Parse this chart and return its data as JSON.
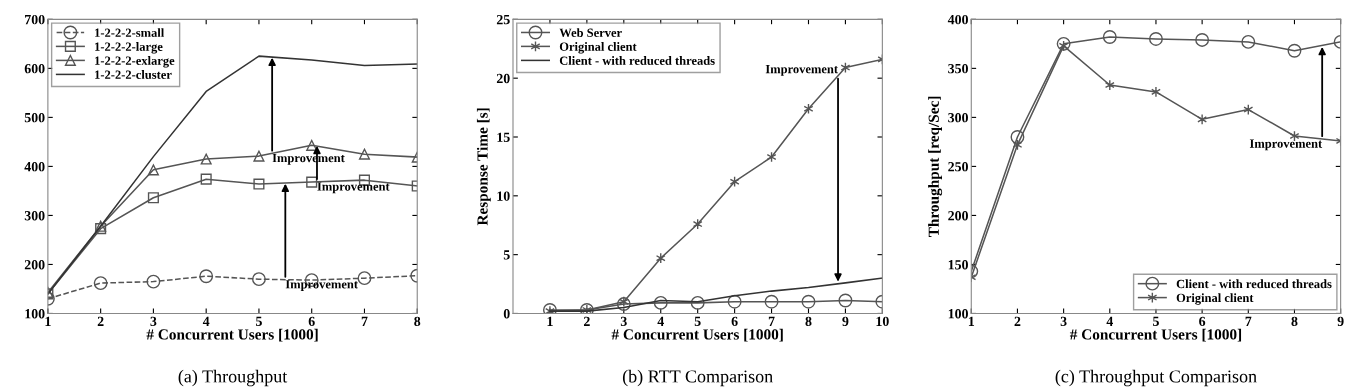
{
  "chart_data": [
    {
      "type": "line",
      "title": "(a) Throughput",
      "xlabel": "# Concurrent Users [1000]",
      "x": [
        1,
        2,
        3,
        4,
        5,
        6,
        7,
        8
      ],
      "xlim": [
        1,
        8
      ],
      "xticks": [
        1,
        2,
        3,
        4,
        5,
        6,
        7,
        8
      ],
      "ylim": [
        100,
        700
      ],
      "yticks": [
        100,
        200,
        300,
        400,
        500,
        600,
        700
      ],
      "grid": false,
      "legend": "top left",
      "series": [
        {
          "name": "1-2-2-2-small",
          "color": "#555555",
          "marker": "circle",
          "line_style": "dashed",
          "values": [
            130,
            162,
            165,
            176,
            170,
            168,
            172,
            177
          ]
        },
        {
          "name": "1-2-2-2-large",
          "color": "#555555",
          "marker": "square",
          "line_style": "solid",
          "values": [
            140,
            273,
            336,
            374,
            364,
            368,
            372,
            360
          ]
        },
        {
          "name": "1-2-2-2-exlarge",
          "color": "#555555",
          "marker": "triangle",
          "line_style": "solid",
          "values": [
            143,
            278,
            393,
            415,
            421,
            443,
            425,
            419
          ]
        },
        {
          "name": "1-2-2-2-cluster",
          "color": "#333333",
          "marker": "none",
          "line_style": "solid",
          "values": [
            140,
            278,
            420,
            553,
            625,
            617,
            606,
            609
          ]
        }
      ],
      "annotations": [
        {
          "text": "Improvement",
          "x": 5.5,
          "y": 365
        },
        {
          "text": "Improvement",
          "x": 6.1,
          "y": 442
        },
        {
          "text": "Improvement",
          "x": 5.25,
          "y": 622
        }
      ]
    },
    {
      "type": "line",
      "title": "(b) RTT Comparison",
      "xlabel": "# Concurrent Users [1000]",
      "ylabel": "Response Time [s]",
      "x": [
        1,
        2,
        3,
        4,
        5,
        6,
        7,
        8,
        9,
        10
      ],
      "xlim": [
        0,
        10
      ],
      "xticks": [
        1,
        2,
        3,
        4,
        5,
        6,
        7,
        8,
        9,
        10
      ],
      "ylim": [
        0,
        25
      ],
      "yticks": [
        0,
        5,
        10,
        15,
        20,
        25
      ],
      "grid": false,
      "legend": "top left",
      "series": [
        {
          "name": "Web Server",
          "color": "#555555",
          "marker": "circle",
          "line_style": "solid",
          "values": [
            0.3,
            0.3,
            0.8,
            0.9,
            0.9,
            1.0,
            1.0,
            1.0,
            1.1,
            1.0
          ]
        },
        {
          "name": "Original client",
          "color": "#555555",
          "marker": "cross",
          "line_style": "solid",
          "values": [
            0.2,
            0.3,
            1.0,
            4.7,
            7.6,
            11.2,
            13.3,
            17.4,
            20.9,
            21.6
          ]
        },
        {
          "name": "Client - with reduced threads",
          "color": "#333333",
          "marker": "none",
          "line_style": "solid",
          "values": [
            0.2,
            0.2,
            0.5,
            1.1,
            1.0,
            1.5,
            1.9,
            2.2,
            2.6,
            3.0
          ]
        }
      ],
      "annotations": [
        {
          "text": "Improvement",
          "x": 8.8,
          "y": 2.7
        }
      ]
    },
    {
      "type": "line",
      "title": "(c) Throughput Comparison",
      "xlabel": "# Concurrent Users [1000]",
      "ylabel": "Throughput [req/Sec]",
      "x": [
        1,
        2,
        3,
        4,
        5,
        6,
        7,
        8,
        9
      ],
      "xlim": [
        1,
        9
      ],
      "xticks": [
        1,
        2,
        3,
        4,
        5,
        6,
        7,
        8,
        9
      ],
      "ylim": [
        100,
        400
      ],
      "yticks": [
        100,
        150,
        200,
        250,
        300,
        350,
        400
      ],
      "grid": false,
      "legend": "bottom right",
      "series": [
        {
          "name": "Client - with reduced threads",
          "color": "#555555",
          "marker": "circle",
          "line_style": "solid",
          "values": [
            143,
            280,
            375,
            382,
            380,
            379,
            377,
            368,
            377
          ]
        },
        {
          "name": "Original client",
          "color": "#555555",
          "marker": "cross",
          "line_style": "solid",
          "values": [
            137,
            272,
            373,
            333,
            326,
            298,
            308,
            281,
            276
          ]
        }
      ],
      "annotations": [
        {
          "text": "Improvement",
          "x": 8.6,
          "y": 372
        }
      ]
    }
  ]
}
